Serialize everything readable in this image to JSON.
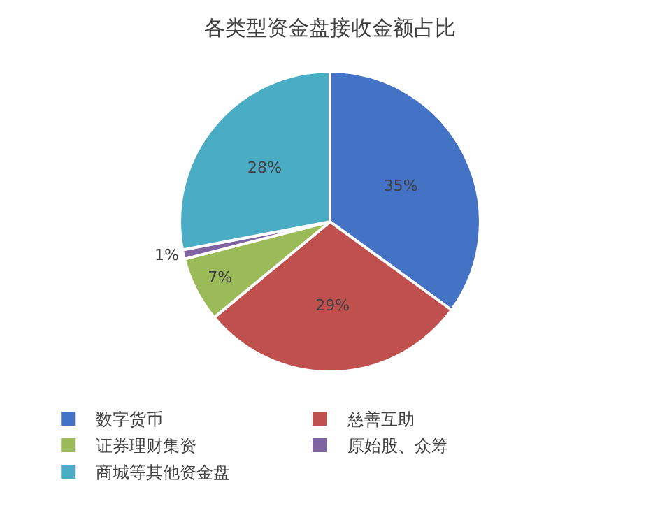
{
  "chart_data": {
    "type": "pie",
    "title": "各类型资金盘接收金额占比",
    "categories": [
      "数字货币",
      "慈善互助",
      "证券理财集资",
      "原始股、众筹",
      "商城等其他资金盘"
    ],
    "values": [
      35,
      29,
      7,
      1,
      28
    ],
    "colors": [
      "#4472c4",
      "#c0504d",
      "#9bbb59",
      "#8064a2",
      "#4bacc6"
    ],
    "value_labels": [
      "35%",
      "29%",
      "7%",
      "1%",
      "28%"
    ],
    "legend": "bottom"
  }
}
